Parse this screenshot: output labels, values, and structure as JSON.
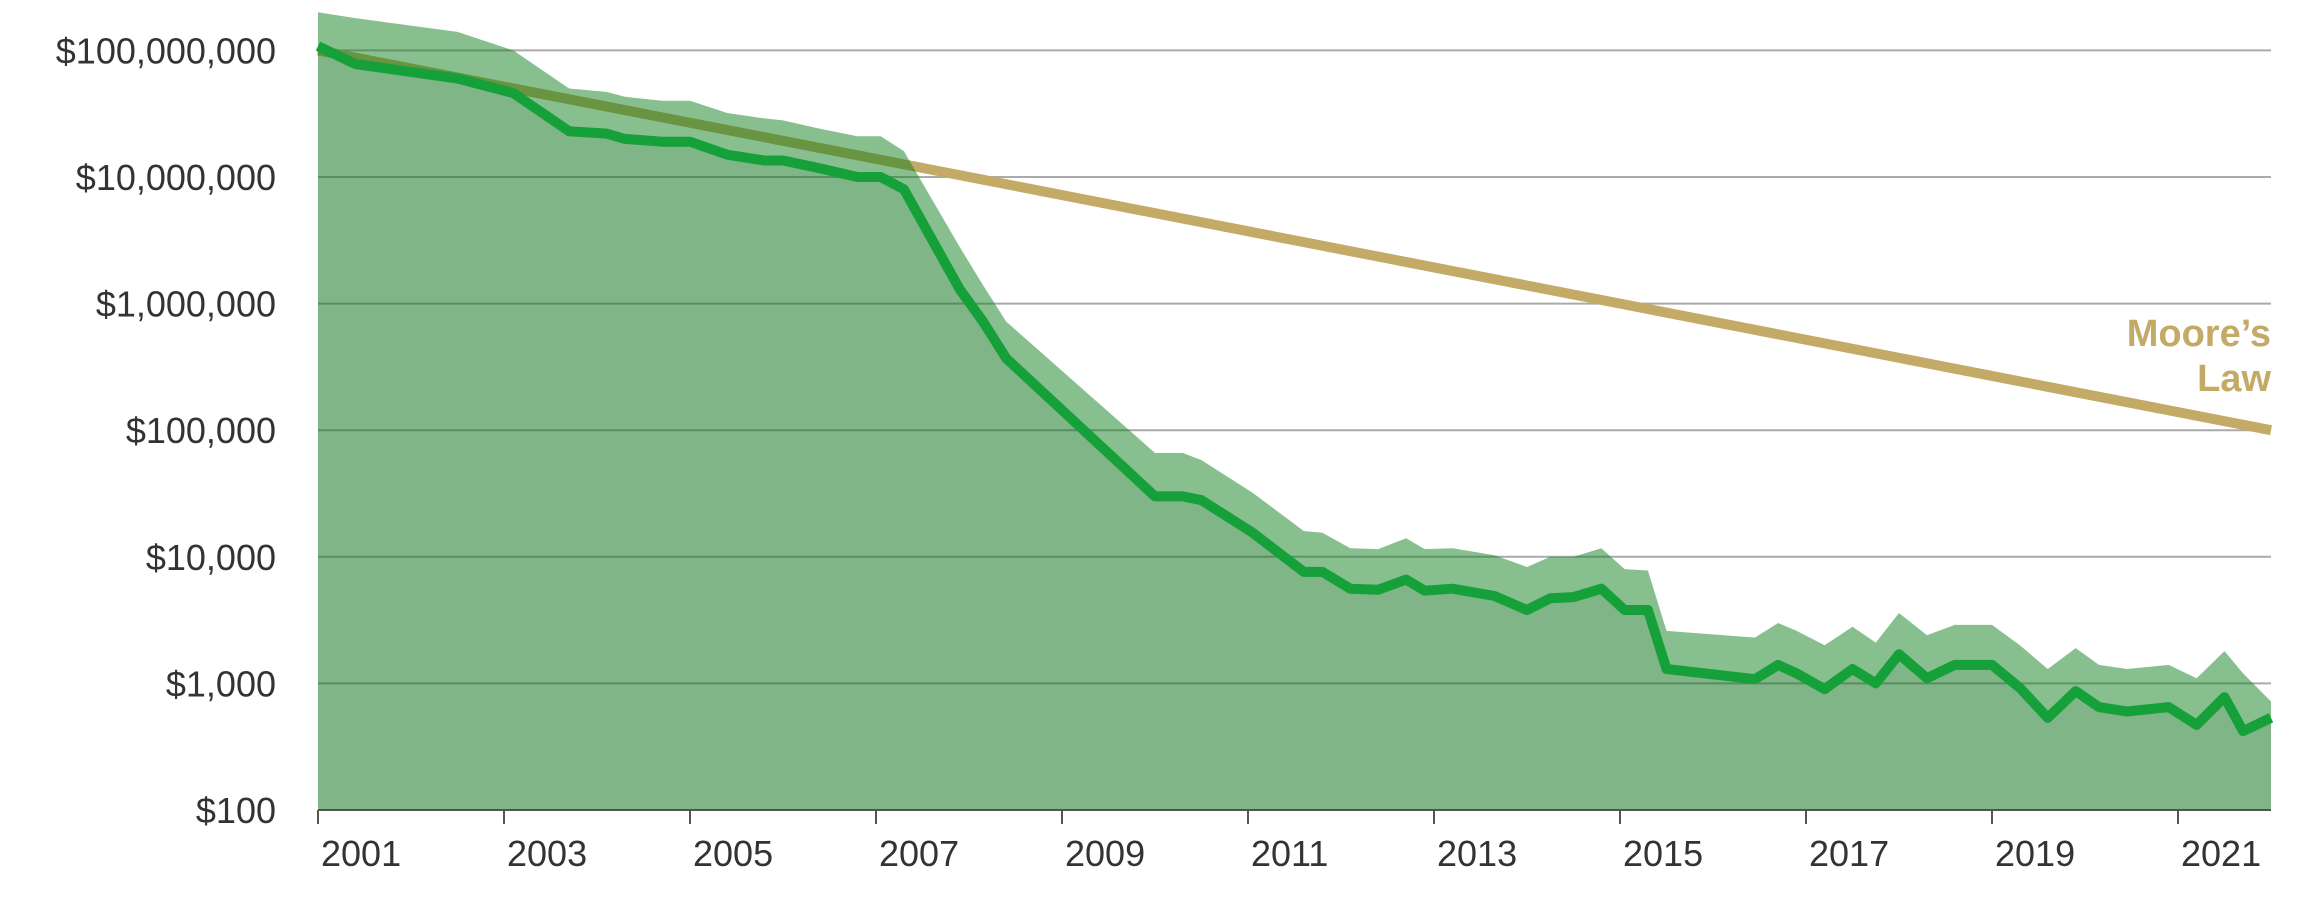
{
  "chart_data": {
    "type": "line",
    "yscale": "log",
    "grid": true,
    "xlim": [
      2001,
      2022
    ],
    "xticks": [
      2001,
      2003,
      2005,
      2007,
      2009,
      2011,
      2013,
      2015,
      2017,
      2019,
      2021
    ],
    "ylim": [
      100,
      250000000
    ],
    "yticks": [
      {
        "value": 100,
        "label": "$100"
      },
      {
        "value": 1000,
        "label": "$1,000"
      },
      {
        "value": 10000,
        "label": "$10,000"
      },
      {
        "value": 100000,
        "label": "$100,000"
      },
      {
        "value": 1000000,
        "label": "$1,000,000"
      },
      {
        "value": 10000000,
        "label": "$10,000,000"
      },
      {
        "value": 100000000,
        "label": "$100,000,000"
      }
    ],
    "x": [
      2001.0,
      2001.4,
      2002.5,
      2003.1,
      2003.7,
      2004.1,
      2004.3,
      2004.7,
      2005.0,
      2005.4,
      2005.8,
      2006.0,
      2006.4,
      2006.8,
      2007.05,
      2007.3,
      2007.9,
      2008.15,
      2008.4,
      2010.0,
      2010.3,
      2010.5,
      2011.05,
      2011.6,
      2011.8,
      2012.1,
      2012.4,
      2012.7,
      2012.9,
      2013.2,
      2013.65,
      2014.0,
      2014.25,
      2014.5,
      2014.8,
      2015.05,
      2015.3,
      2015.5,
      2016.45,
      2016.7,
      2016.9,
      2017.2,
      2017.5,
      2017.75,
      2018.0,
      2018.3,
      2018.6,
      2019.0,
      2019.3,
      2019.6,
      2019.9,
      2020.15,
      2020.45,
      2020.9,
      2021.2,
      2021.5,
      2021.7,
      2022.0
    ],
    "series": [
      {
        "style": "line",
        "color": "#16a03a",
        "fill": "rgba(0,0,0,0.05)",
        "values": [
          108000000,
          78000000,
          60000000,
          46000000,
          23000000,
          22000000,
          20000000,
          19000000,
          19000000,
          15000000,
          13500000,
          13500000,
          11700000,
          10000000,
          10000000,
          8000000,
          1300000,
          720000,
          370000,
          30000,
          30000,
          28000,
          15500,
          7600,
          7600,
          5600,
          5500,
          6600,
          5400,
          5600,
          4900,
          3800,
          4700,
          4800,
          5600,
          3800,
          3800,
          1300,
          1080,
          1400,
          1200,
          900,
          1300,
          1000,
          1700,
          1100,
          1400,
          1400,
          920,
          535,
          870,
          650,
          600,
          650,
          470,
          780,
          420,
          535
        ]
      },
      {
        "style": "band",
        "color": "rgba(16,128,32,0.5)",
        "values": [
          200000000,
          180000000,
          140000000,
          100000000,
          50000000,
          47000000,
          43000000,
          40000000,
          40000000,
          32000000,
          29000000,
          28000000,
          24000000,
          21000000,
          21000000,
          16000000,
          2800000,
          1400000,
          720000,
          66000,
          66000,
          58000,
          32000,
          16000,
          15500,
          11700,
          11500,
          14000,
          11500,
          11700,
          10300,
          8300,
          10000,
          10000,
          11700,
          8000,
          7800,
          2600,
          2300,
          3000,
          2600,
          2000,
          2800,
          2100,
          3600,
          2400,
          2900,
          2900,
          2000,
          1300,
          1900,
          1400,
          1300,
          1400,
          1100,
          1800,
          1200,
          720
        ]
      },
      {
        "style": "line",
        "name": "Moore’s Law",
        "color": "#c3aa66",
        "x": [
          2001,
          2022
        ],
        "values": [
          100000000,
          100000
        ]
      }
    ]
  }
}
